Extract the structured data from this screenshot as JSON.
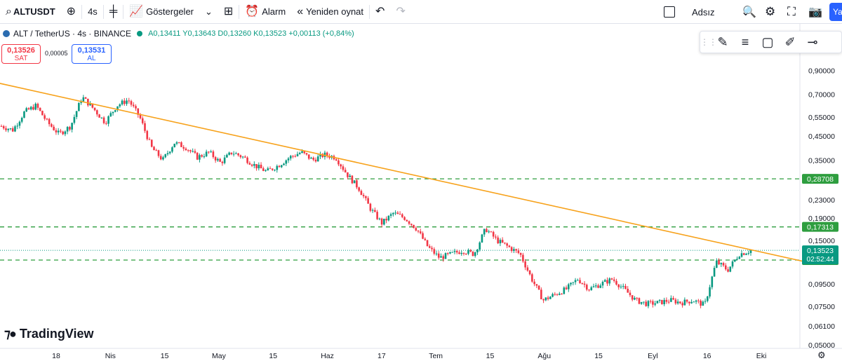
{
  "toolbar": {
    "symbol": "ALTUSDT",
    "interval": "4s",
    "indicators_label": "Göstergeler",
    "alert_label": "Alarm",
    "replay_label": "Yeniden oynat",
    "layout_name": "Adsız",
    "publish_label": "Ya"
  },
  "legend": {
    "title": "ALT / TetherUS · 4s · BINANCE",
    "open": "A0,13411",
    "high": "Y0,13643",
    "low": "D0,13260",
    "close": "K0,13523",
    "change": "+0,00113 (+0,84%)"
  },
  "trade": {
    "sell_price": "0,13526",
    "sell_label": "SAT",
    "spread": "0,00005",
    "buy_price": "0,13531",
    "buy_label": "AL"
  },
  "brand": "TradingView",
  "colors": {
    "up": "#089981",
    "down": "#f23645",
    "trendline": "#f7a21b",
    "level": "#2e9e3f"
  },
  "chart_data": {
    "type": "candlestick",
    "y_scale": "log",
    "ylim": [
      0.05,
      1.0
    ],
    "y_ticks": [
      "0,90000",
      "0,70000",
      "0,55000",
      "0,45000",
      "0,35000",
      "0,23000",
      "0,19000",
      "0,15000",
      "0,09500",
      "0,07500",
      "0,06100",
      "0,05000"
    ],
    "x_ticks": [
      "18",
      "Nis",
      "15",
      "May",
      "15",
      "Haz",
      "17",
      "Tem",
      "15",
      "Ağu",
      "15",
      "Eyl",
      "16",
      "Eki"
    ],
    "price_path": [
      [
        0,
        0.5
      ],
      [
        1,
        0.48
      ],
      [
        2,
        0.58
      ],
      [
        3,
        0.62
      ],
      [
        4,
        0.52
      ],
      [
        5,
        0.46
      ],
      [
        6,
        0.5
      ],
      [
        7,
        0.68
      ],
      [
        8,
        0.6
      ],
      [
        9,
        0.52
      ],
      [
        10,
        0.62
      ],
      [
        11,
        0.66
      ],
      [
        12,
        0.55
      ],
      [
        13,
        0.4
      ],
      [
        14,
        0.35
      ],
      [
        15,
        0.42
      ],
      [
        16,
        0.4
      ],
      [
        17,
        0.36
      ],
      [
        18,
        0.38
      ],
      [
        19,
        0.34
      ],
      [
        20,
        0.38
      ],
      [
        21,
        0.36
      ],
      [
        22,
        0.33
      ],
      [
        23,
        0.31
      ],
      [
        24,
        0.33
      ],
      [
        25,
        0.36
      ],
      [
        26,
        0.38
      ],
      [
        27,
        0.35
      ],
      [
        28,
        0.37
      ],
      [
        29,
        0.36
      ],
      [
        30,
        0.3
      ],
      [
        31,
        0.26
      ],
      [
        32,
        0.21
      ],
      [
        33,
        0.18
      ],
      [
        34,
        0.2
      ],
      [
        35,
        0.19
      ],
      [
        36,
        0.17
      ],
      [
        37,
        0.14
      ],
      [
        38,
        0.125
      ],
      [
        39,
        0.13
      ],
      [
        40,
        0.135
      ],
      [
        41,
        0.13
      ],
      [
        42,
        0.17
      ],
      [
        43,
        0.15
      ],
      [
        44,
        0.14
      ],
      [
        45,
        0.13
      ],
      [
        46,
        0.1
      ],
      [
        47,
        0.08
      ],
      [
        48,
        0.085
      ],
      [
        49,
        0.09
      ],
      [
        50,
        0.1
      ],
      [
        51,
        0.09
      ],
      [
        52,
        0.095
      ],
      [
        53,
        0.1
      ],
      [
        54,
        0.09
      ],
      [
        55,
        0.08
      ],
      [
        56,
        0.077
      ],
      [
        57,
        0.078
      ],
      [
        58,
        0.08
      ],
      [
        59,
        0.078
      ],
      [
        60,
        0.08
      ],
      [
        61,
        0.076
      ],
      [
        62,
        0.12
      ],
      [
        63,
        0.11
      ],
      [
        64,
        0.13
      ],
      [
        65,
        0.135
      ]
    ],
    "trendline": {
      "start": [
        -4,
        0.87
      ],
      "end": [
        70,
        0.119
      ]
    },
    "levels": [
      {
        "label": "0,28708",
        "value": 0.28708
      },
      {
        "label": "0,17313",
        "value": 0.17313
      },
      {
        "label": "0,12212",
        "value": 0.12212
      }
    ],
    "last_price": {
      "label": "0,13523",
      "value": 0.13523,
      "countdown": "02:52:44"
    }
  }
}
